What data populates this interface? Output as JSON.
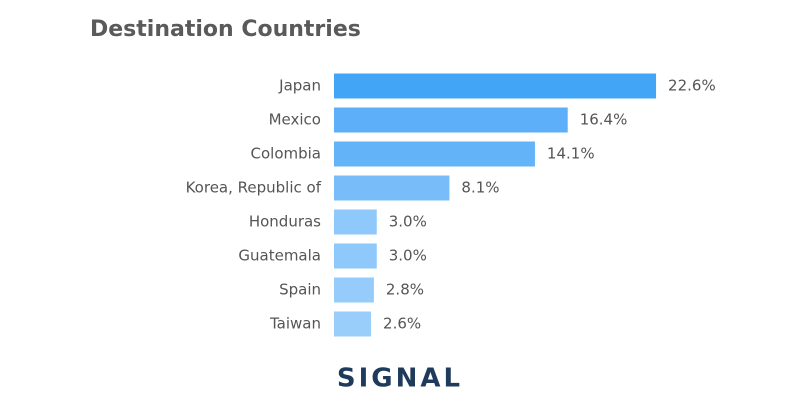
{
  "chart_data": {
    "type": "bar",
    "orientation": "horizontal",
    "title": "Destination Countries",
    "categories": [
      "Japan",
      "Mexico",
      "Colombia",
      "Korea, Republic of",
      "Honduras",
      "Guatemala",
      "Spain",
      "Taiwan"
    ],
    "values": [
      22.6,
      16.4,
      14.1,
      8.1,
      3.0,
      3.0,
      2.8,
      2.6
    ],
    "value_labels": [
      "22.6%",
      "16.4%",
      "14.1%",
      "8.1%",
      "3.0%",
      "3.0%",
      "2.8%",
      "2.6%"
    ],
    "colors": [
      "#42a5f5",
      "#5caff8",
      "#62b3f8",
      "#78bdf9",
      "#8fc9fb",
      "#8fc9fb",
      "#95ccfb",
      "#99cefb"
    ]
  },
  "logo": "SIGNAL"
}
